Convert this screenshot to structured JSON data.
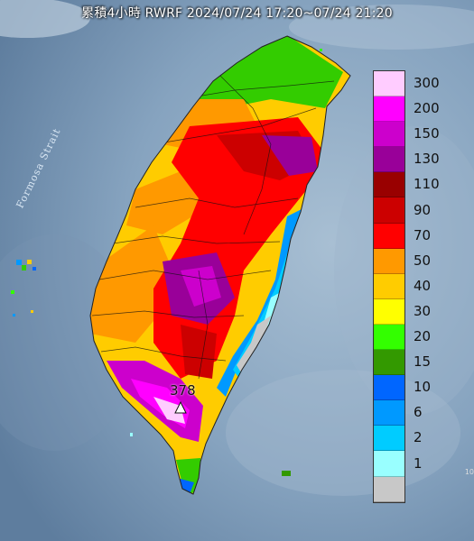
{
  "title": "累積4小時 RWRF 2024/07/24 17:20~07/24 21:20",
  "strait_label": "Formosa Strait",
  "max_value_label": "378",
  "corner_label": "10",
  "legend": [
    {
      "label": "300",
      "color": "#ffccff"
    },
    {
      "label": "200",
      "color": "#ff00ff"
    },
    {
      "label": "150",
      "color": "#cc00cc"
    },
    {
      "label": "130",
      "color": "#990099"
    },
    {
      "label": "110",
      "color": "#990000"
    },
    {
      "label": "90",
      "color": "#cc0000"
    },
    {
      "label": "70",
      "color": "#ff0000"
    },
    {
      "label": "50",
      "color": "#ff9900"
    },
    {
      "label": "40",
      "color": "#ffcc00"
    },
    {
      "label": "30",
      "color": "#ffff00"
    },
    {
      "label": "20",
      "color": "#33ff00"
    },
    {
      "label": "15",
      "color": "#339900"
    },
    {
      "label": "10",
      "color": "#0066ff"
    },
    {
      "label": "6",
      "color": "#0099ff"
    },
    {
      "label": "2",
      "color": "#00ccff"
    },
    {
      "label": "1",
      "color": "#99ffff"
    },
    {
      "label": "",
      "color": "#c8c8c8"
    }
  ]
}
